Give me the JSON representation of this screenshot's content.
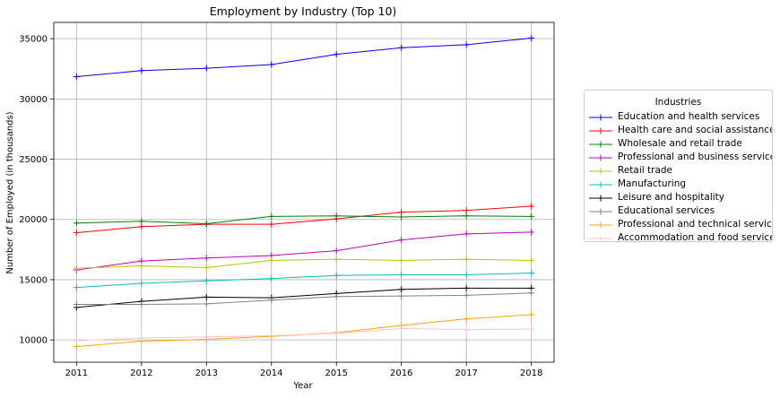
{
  "chart_data": {
    "type": "line",
    "title": "Employment by Industry (Top 10)",
    "xlabel": "Year",
    "ylabel": "Number of Employed (in thousands)",
    "x": [
      2011,
      2012,
      2013,
      2014,
      2015,
      2016,
      2017,
      2018
    ],
    "xlim": [
      2010.65,
      2018.35
    ],
    "ylim": [
      8150,
      36350
    ],
    "yticks": [
      10000,
      15000,
      20000,
      25000,
      30000,
      35000
    ],
    "grid": true,
    "legend": {
      "title": "Industries",
      "placement": "outside-right"
    },
    "series": [
      {
        "name": "Education and health services",
        "color": "#0000ff",
        "values": [
          31850,
          32350,
          32550,
          32850,
          33700,
          34250,
          34500,
          35050
        ]
      },
      {
        "name": "Health care and social assistance",
        "color": "#ff0000",
        "values": [
          18900,
          19400,
          19600,
          19600,
          20050,
          20600,
          20750,
          21100
        ]
      },
      {
        "name": "Wholesale and retail trade",
        "color": "#008000",
        "values": [
          19700,
          19850,
          19650,
          20250,
          20300,
          20200,
          20300,
          20250
        ]
      },
      {
        "name": "Professional and business services",
        "color": "#bf00bf",
        "values": [
          15800,
          16550,
          16800,
          17000,
          17400,
          18300,
          18800,
          18950
        ]
      },
      {
        "name": "Retail trade",
        "color": "#bfbf00",
        "values": [
          15950,
          16150,
          16000,
          16600,
          16700,
          16600,
          16700,
          16600
        ]
      },
      {
        "name": "Manufacturing",
        "color": "#00bfbf",
        "values": [
          14350,
          14700,
          14900,
          15100,
          15350,
          15400,
          15400,
          15550
        ]
      },
      {
        "name": "Leisure and hospitality",
        "color": "#000000",
        "values": [
          12700,
          13200,
          13550,
          13500,
          13850,
          14200,
          14300,
          14300
        ]
      },
      {
        "name": "Educational services",
        "color": "#808080",
        "values": [
          12950,
          12950,
          13000,
          13300,
          13600,
          13650,
          13700,
          13900
        ]
      },
      {
        "name": "Professional and technical services",
        "color": "#ffa500",
        "values": [
          9450,
          9900,
          10050,
          10300,
          10600,
          11200,
          11750,
          12100
        ]
      },
      {
        "name": "Accommodation and food services",
        "color": "#ffc0cb",
        "values": [
          9950,
          10150,
          10250,
          10350,
          10550,
          10950,
          10850,
          10900
        ]
      }
    ]
  }
}
